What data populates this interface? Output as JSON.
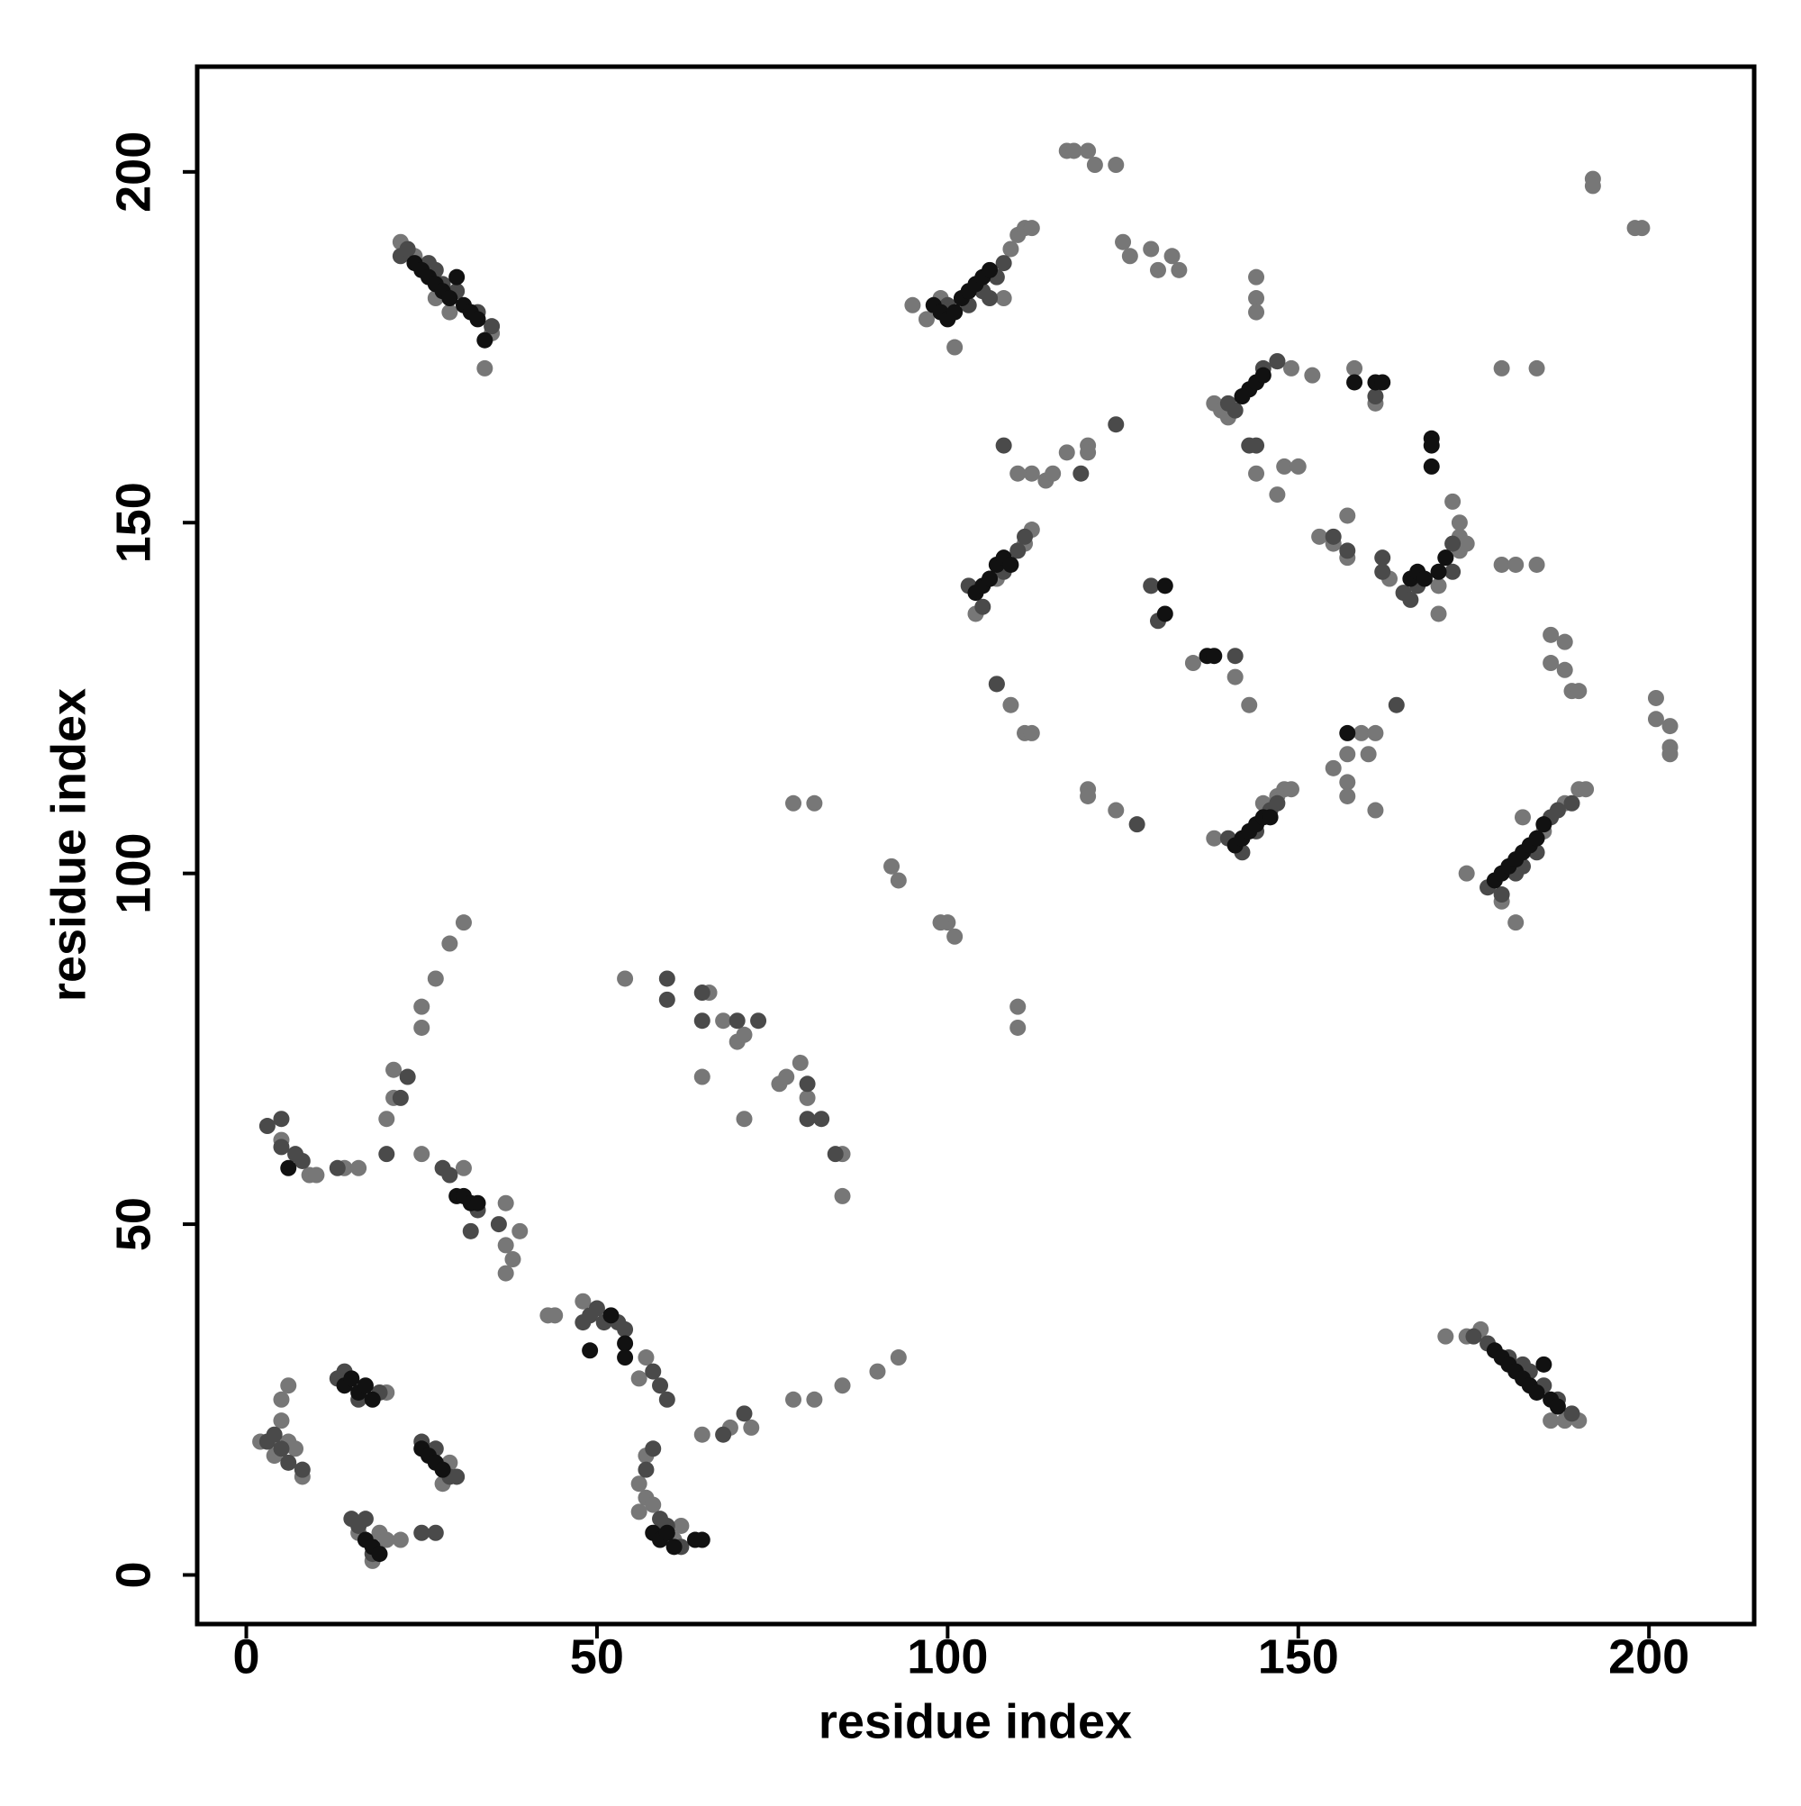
{
  "chart_data": {
    "type": "scatter",
    "x_label": "residue index",
    "y_label": "residue index",
    "xlim": [
      -7,
      215
    ],
    "ylim": [
      -7,
      215
    ],
    "xticks": [
      0,
      50,
      100,
      150,
      200
    ],
    "yticks": [
      0,
      50,
      100,
      150,
      200
    ],
    "grid": false,
    "series": [
      {
        "color": "#777777",
        "x": [
          22,
          24,
          27,
          29,
          35,
          34,
          95,
          97,
          99,
          101,
          108,
          109,
          110,
          111,
          112,
          117,
          118,
          120,
          121,
          124,
          125,
          126,
          129,
          130,
          132,
          133,
          144,
          144,
          144,
          147,
          149,
          152,
          158,
          161,
          138,
          139,
          140,
          144,
          147,
          148,
          150,
          112,
          114,
          115,
          117,
          120,
          120,
          110,
          112,
          111,
          107,
          106,
          104,
          138,
          145,
          147,
          148,
          149,
          174,
          179,
          181,
          182,
          185,
          188,
          190,
          191,
          153,
          155,
          157,
          157,
          163,
          170,
          170,
          171,
          172,
          173,
          173,
          173,
          174,
          179,
          179,
          181,
          184,
          184,
          186,
          186,
          188,
          188,
          189,
          190,
          192,
          192,
          198,
          199,
          201,
          201,
          203,
          203,
          203,
          120,
          120,
          124,
          135,
          141,
          143,
          107,
          109,
          111,
          112,
          155,
          157,
          157,
          157,
          159,
          160,
          161,
          161,
          100,
          101,
          99,
          92,
          93,
          78,
          81,
          110,
          110,
          171,
          174,
          176,
          186,
          188,
          190,
          5,
          9,
          10,
          14,
          16,
          20,
          21,
          21,
          25,
          25,
          25,
          27,
          29,
          31,
          31,
          37,
          37,
          37,
          38,
          39,
          43,
          44,
          48,
          54,
          57,
          56,
          57,
          57,
          56,
          65,
          66,
          68,
          70,
          71,
          71,
          76,
          77,
          79,
          80,
          85,
          85,
          65,
          69,
          72,
          78,
          81,
          85,
          90,
          93,
          2,
          4,
          5,
          5,
          6,
          6,
          7,
          8,
          28,
          29,
          20,
          22,
          14,
          16,
          18,
          19,
          20,
          56,
          58,
          59,
          61,
          62
        ],
        "values": [
          190,
          188,
          182,
          180,
          177,
          172,
          181,
          179,
          182,
          175,
          182,
          189,
          191,
          192,
          192,
          203,
          203,
          203,
          201,
          201,
          190,
          188,
          189,
          186,
          188,
          186,
          185,
          182,
          180,
          173,
          172,
          171,
          172,
          167,
          167,
          166,
          165,
          157,
          154,
          158,
          158,
          157,
          156,
          157,
          160,
          161,
          160,
          157,
          149,
          147,
          142,
          142,
          137,
          105,
          110,
          111,
          112,
          112,
          100,
          96,
          93,
          108,
          106,
          110,
          112,
          112,
          148,
          147,
          151,
          145,
          142,
          141,
          137,
          145,
          153,
          150,
          148,
          146,
          147,
          172,
          144,
          144,
          144,
          172,
          134,
          130,
          129,
          133,
          126,
          126,
          199,
          198,
          192,
          192,
          122,
          125,
          121,
          118,
          117,
          112,
          111,
          109,
          130,
          128,
          124,
          127,
          124,
          120,
          120,
          115,
          117,
          113,
          111,
          120,
          117,
          120,
          109,
          93,
          91,
          93,
          101,
          99,
          110,
          110,
          81,
          78,
          34,
          34,
          35,
          22,
          22,
          22,
          62,
          57,
          57,
          58,
          58,
          65,
          68,
          72,
          60,
          81,
          78,
          85,
          90,
          93,
          58,
          53,
          47,
          43,
          45,
          49,
          37,
          37,
          39,
          85,
          31,
          28,
          17,
          11,
          13,
          71,
          83,
          79,
          76,
          65,
          77,
          70,
          71,
          73,
          68,
          60,
          54,
          20,
          21,
          21,
          25,
          25,
          27,
          29,
          31,
          19,
          17,
          22,
          25,
          27,
          19,
          18,
          14,
          13,
          16,
          26,
          5,
          28,
          6,
          2,
          6,
          5,
          9,
          10,
          6,
          5,
          7
        ]
      },
      {
        "color": "#4a4a4a",
        "x": [
          22,
          23,
          26,
          27,
          28,
          30,
          33,
          35,
          100,
          103,
          105,
          106,
          107,
          108,
          103,
          105,
          108,
          110,
          111,
          140,
          142,
          144,
          146,
          147,
          177,
          179,
          181,
          182,
          184,
          186,
          187,
          189,
          140,
          141,
          143,
          144,
          145,
          147,
          157,
          155,
          162,
          162,
          161,
          165,
          166,
          167,
          172,
          172,
          119,
          124,
          127,
          129,
          130,
          141,
          164,
          108,
          107,
          175,
          177,
          180,
          182,
          183,
          185,
          187,
          189,
          3,
          5,
          5,
          7,
          8,
          13,
          20,
          22,
          23,
          28,
          29,
          33,
          36,
          32,
          48,
          49,
          50,
          51,
          53,
          54,
          58,
          59,
          60,
          60,
          60,
          65,
          65,
          70,
          73,
          80,
          80,
          82,
          84,
          3,
          4,
          5,
          6,
          8,
          13,
          14,
          16,
          19,
          25,
          27,
          29,
          30,
          15,
          16,
          17,
          18,
          25,
          27,
          57,
          58,
          59,
          60,
          62,
          68,
          71
        ],
        "values": [
          188,
          189,
          187,
          186,
          184,
          183,
          180,
          178,
          181,
          181,
          183,
          182,
          185,
          187,
          141,
          138,
          143,
          146,
          148,
          105,
          103,
          106,
          109,
          110,
          98,
          97,
          100,
          101,
          103,
          108,
          109,
          110,
          167,
          166,
          161,
          161,
          172,
          173,
          146,
          148,
          143,
          145,
          168,
          140,
          139,
          141,
          143,
          147,
          157,
          164,
          107,
          141,
          136,
          131,
          124,
          161,
          127,
          34,
          33,
          31,
          30,
          29,
          27,
          25,
          23,
          64,
          65,
          61,
          60,
          59,
          58,
          60,
          68,
          71,
          58,
          57,
          52,
          50,
          49,
          36,
          37,
          38,
          36,
          36,
          35,
          29,
          27,
          25,
          85,
          82,
          83,
          79,
          79,
          79,
          70,
          65,
          65,
          60,
          19,
          20,
          18,
          16,
          15,
          28,
          29,
          25,
          26,
          19,
          18,
          14,
          14,
          8,
          7,
          8,
          3,
          6,
          6,
          15,
          18,
          8,
          7,
          4,
          20,
          23
        ]
      },
      {
        "color": "#111111",
        "x": [
          24,
          25,
          26,
          27,
          28,
          29,
          30,
          31,
          32,
          33,
          34,
          98,
          99,
          100,
          101,
          102,
          103,
          104,
          105,
          106,
          104,
          105,
          106,
          107,
          108,
          109,
          141,
          142,
          143,
          144,
          145,
          146,
          178,
          179,
          180,
          181,
          182,
          183,
          184,
          185,
          143,
          144,
          145,
          142,
          158,
          161,
          162,
          169,
          169,
          169,
          166,
          167,
          168,
          170,
          171,
          131,
          131,
          137,
          138,
          157,
          178,
          179,
          180,
          181,
          182,
          183,
          184,
          185,
          186,
          187,
          6,
          30,
          31,
          32,
          33,
          54,
          54,
          49,
          52,
          14,
          15,
          16,
          17,
          18,
          25,
          26,
          27,
          28,
          17,
          18,
          19,
          58,
          59,
          60,
          61,
          64,
          65
        ],
        "values": [
          187,
          186,
          185,
          184,
          183,
          182,
          185,
          181,
          180,
          179,
          176,
          181,
          180,
          179,
          180,
          182,
          183,
          184,
          185,
          186,
          140,
          141,
          142,
          144,
          145,
          144,
          104,
          105,
          106,
          107,
          108,
          108,
          99,
          100,
          101,
          102,
          103,
          104,
          105,
          107,
          169,
          170,
          171,
          168,
          170,
          170,
          170,
          162,
          161,
          158,
          142,
          143,
          142,
          143,
          145,
          137,
          141,
          131,
          131,
          120,
          32,
          31,
          30,
          29,
          28,
          27,
          26,
          30,
          25,
          24,
          58,
          54,
          54,
          53,
          53,
          33,
          31,
          32,
          37,
          27,
          28,
          26,
          27,
          25,
          18,
          17,
          16,
          15,
          5,
          4,
          3,
          6,
          5,
          6,
          4,
          5,
          5
        ]
      }
    ]
  }
}
